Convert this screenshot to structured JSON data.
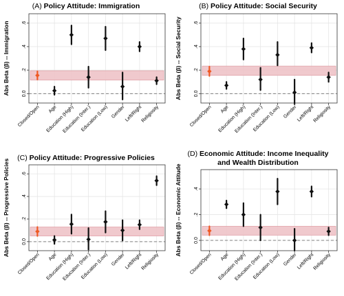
{
  "colors": {
    "point": "#111111",
    "highlight_point": "#ef5a24",
    "band_fill": "#efc4c8",
    "band_stroke": "#d98a92",
    "zero_line": "#7f7f7f",
    "grid": "#e6e6e6",
    "frame": "#333333"
  },
  "chart_data": [
    {
      "type": "scatter",
      "panel_label": "(A)",
      "title": "Policy Attitude: Immigration",
      "title_line2": "",
      "ylabel": "Abs Beta (β) -- Immigration",
      "xlabel": "",
      "categories": [
        "Closed/Open",
        "Age",
        "Education (High)",
        "Education (Inter.)",
        "Education (Low)",
        "Gender",
        "Left/Right",
        "Religiosity"
      ],
      "ylim": [
        -0.08,
        0.68
      ],
      "yticks": [
        0.0,
        0.2,
        0.4,
        0.6
      ],
      "ytick_labels": [
        "0.0",
        ".2",
        ".4",
        ".6"
      ],
      "estimates": [
        0.155,
        0.025,
        0.5,
        0.14,
        0.47,
        0.06,
        0.4,
        0.11
      ],
      "ci_low": [
        0.12,
        -0.01,
        0.42,
        0.05,
        0.37,
        -0.05,
        0.36,
        0.08
      ],
      "ci_high": [
        0.19,
        0.06,
        0.58,
        0.23,
        0.57,
        0.18,
        0.44,
        0.14
      ],
      "band": [
        0.115,
        0.195
      ],
      "highlight_index": 0,
      "grid": true
    },
    {
      "type": "scatter",
      "panel_label": "(B)",
      "title": "Policy Attitude: Social Security",
      "title_line2": "",
      "ylabel": "Abs Beta (β) -- Social Security",
      "xlabel": "",
      "categories": [
        "Closed/Open",
        "Age",
        "Education (High)",
        "Education (Inter.)",
        "Education (Low)",
        "Gender",
        "Left/Right",
        "Religiosity"
      ],
      "ylim": [
        -0.08,
        0.68
      ],
      "yticks": [
        0.0,
        0.2,
        0.4,
        0.6
      ],
      "ytick_labels": [
        "0.0",
        ".2",
        ".4",
        ".6"
      ],
      "estimates": [
        0.19,
        0.07,
        0.38,
        0.12,
        0.33,
        0.01,
        0.39,
        0.14
      ],
      "ci_low": [
        0.15,
        0.04,
        0.29,
        0.03,
        0.24,
        -0.09,
        0.35,
        0.1
      ],
      "ci_high": [
        0.23,
        0.1,
        0.47,
        0.22,
        0.44,
        0.12,
        0.43,
        0.18
      ],
      "band": [
        0.155,
        0.235
      ],
      "highlight_index": 0,
      "grid": true
    },
    {
      "type": "scatter",
      "panel_label": "(C)",
      "title": "Policy Attitude: Progressive Policies",
      "title_line2": "",
      "ylabel": "Abs Beta (β) -- Progressive Policies",
      "xlabel": "",
      "categories": [
        "Closed/Open",
        "Age",
        "Education (High)",
        "Education (Inter.)",
        "Education (Low)",
        "Gender",
        "Left/Right",
        "Religiosity"
      ],
      "ylim": [
        -0.08,
        0.68
      ],
      "yticks": [
        0.0,
        0.2,
        0.4,
        0.6
      ],
      "ytick_labels": [
        "0.0",
        ".2",
        ".4",
        ".6"
      ],
      "estimates": [
        0.09,
        0.015,
        0.155,
        0.02,
        0.175,
        0.1,
        0.15,
        0.54
      ],
      "ci_low": [
        0.05,
        -0.02,
        0.07,
        -0.07,
        0.08,
        0.01,
        0.11,
        0.5
      ],
      "ci_high": [
        0.13,
        0.05,
        0.24,
        0.12,
        0.27,
        0.19,
        0.19,
        0.58
      ],
      "band": [
        0.05,
        0.13
      ],
      "highlight_index": 0,
      "grid": true
    },
    {
      "type": "scatter",
      "panel_label": "(D)",
      "title": "Economic Attitude: Income Inequality",
      "title_line2": "and Wealth Distribution",
      "ylabel": "Abs Beta (β) -- Economic Attitude",
      "xlabel": "",
      "categories": [
        "Closed/Open",
        "Age",
        "Education (High)",
        "Education (Inter.)",
        "Education (Low)",
        "Gender",
        "Left/Right",
        "Religiosity"
      ],
      "ylim": [
        -0.08,
        0.55
      ],
      "yticks": [
        0.0,
        0.2,
        0.4
      ],
      "ytick_labels": [
        "0.0",
        ".2",
        ".4"
      ],
      "estimates": [
        0.075,
        0.28,
        0.2,
        0.1,
        0.38,
        0.0,
        0.38,
        0.07
      ],
      "ci_low": [
        0.04,
        0.25,
        0.11,
        0.0,
        0.28,
        -0.08,
        0.34,
        0.04
      ],
      "ci_high": [
        0.11,
        0.31,
        0.29,
        0.2,
        0.48,
        0.09,
        0.42,
        0.1
      ],
      "band": [
        0.04,
        0.11
      ],
      "highlight_index": 0,
      "grid": true
    }
  ]
}
